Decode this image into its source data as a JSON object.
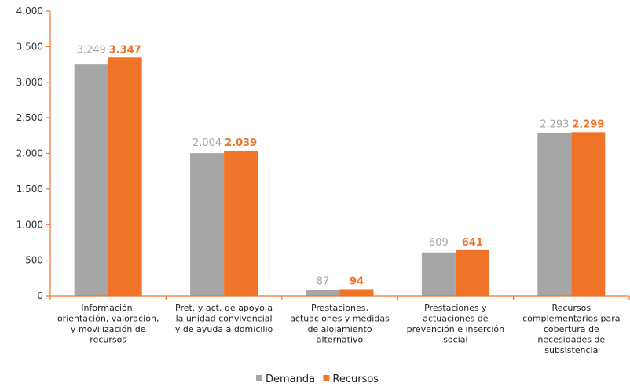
{
  "chart_data": {
    "type": "bar",
    "title": "",
    "xlabel": "",
    "ylabel": "",
    "ylim": [
      0,
      4000
    ],
    "yticks": [
      0,
      500,
      1000,
      1500,
      2000,
      2500,
      3000,
      3500,
      4000
    ],
    "ytick_labels": [
      "0",
      "500",
      "1.000",
      "1.500",
      "2.000",
      "2.500",
      "3.000",
      "3.500",
      "4.000"
    ],
    "grid": false,
    "legend_position": "bottom",
    "categories": [
      [
        "Información,",
        "orientación, valoración,",
        "y movilización de",
        "recursos"
      ],
      [
        "Pret. y act. de apoyo a",
        "la unidad convivencial",
        "y de ayuda a domicilio"
      ],
      [
        "Prestaciones,",
        "actuaciones y medidas",
        "de alojamiento",
        "alternativo"
      ],
      [
        "Prestaciones y",
        "actuaciones de",
        "prevención e inserción",
        "social"
      ],
      [
        "Recursos",
        "complementarios para",
        "cobertura de",
        "necesidades de",
        "subsistencia"
      ]
    ],
    "series": [
      {
        "name": "Demanda",
        "color": "#a6a6a6",
        "values": [
          3249,
          2004,
          87,
          609,
          2293
        ],
        "labels": [
          "3.249",
          "2.004",
          "87",
          "609",
          "2.293"
        ]
      },
      {
        "name": "Recursos",
        "color": "#f07427",
        "values": [
          3347,
          2039,
          94,
          641,
          2299
        ],
        "labels": [
          "3.347",
          "2.039",
          "94",
          "641",
          "2.299"
        ]
      }
    ],
    "axis_color": "#f07427"
  }
}
